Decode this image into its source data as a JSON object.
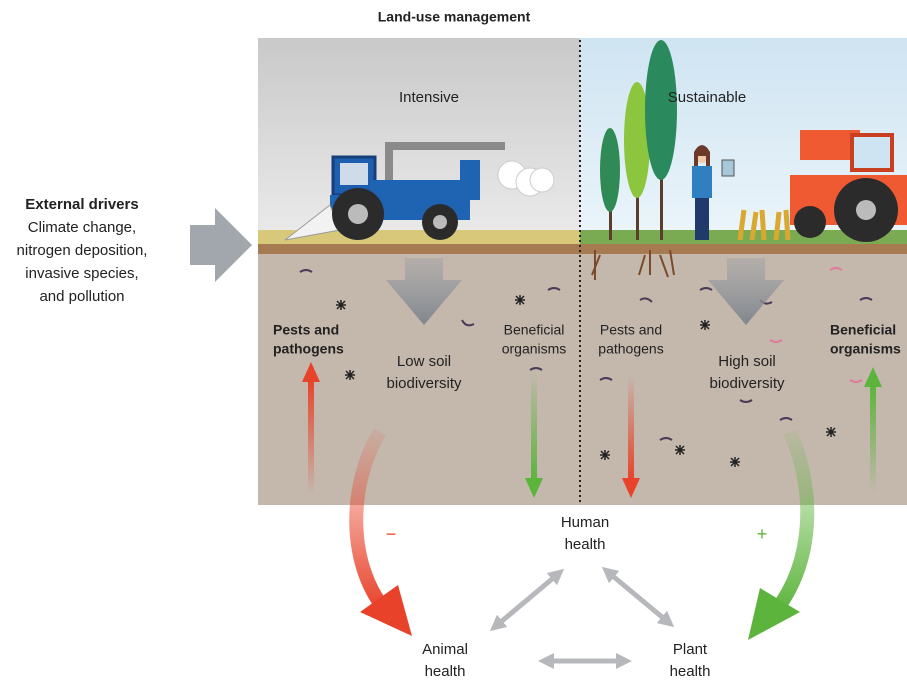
{
  "title": "Land-use management",
  "external_drivers": {
    "title": "External drivers",
    "lines": [
      "Climate change,",
      "nitrogen deposition,",
      "invasive species,",
      "and pollution"
    ]
  },
  "panels": [
    {
      "label": "Intensive",
      "pests": [
        "Pests and",
        "pathogens"
      ],
      "center": [
        "Low soil",
        "biodiversity"
      ],
      "beneficial": [
        "Beneficial",
        "organisms"
      ]
    },
    {
      "label": "Sustainable",
      "pests": [
        "Pests and",
        "pathogens"
      ],
      "center": [
        "High soil",
        "biodiversity"
      ],
      "beneficial": [
        "Beneficial",
        "organisms"
      ]
    }
  ],
  "signs": [
    "−",
    "+"
  ],
  "nodes": [
    {
      "label": [
        "Human",
        "health"
      ]
    },
    {
      "label": [
        "Animal",
        "health"
      ]
    },
    {
      "label": [
        "Plant",
        "health"
      ]
    }
  ]
}
